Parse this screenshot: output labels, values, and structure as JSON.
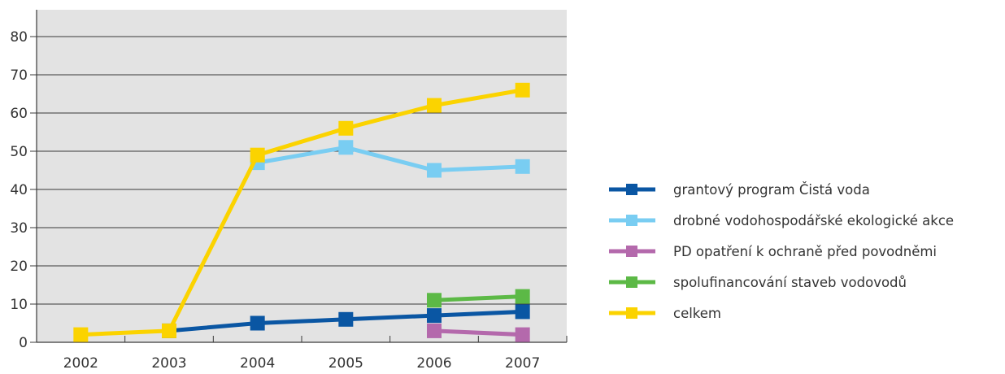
{
  "chart_data": {
    "type": "line",
    "categories": [
      "2002",
      "2003",
      "2004",
      "2005",
      "2006",
      "2007"
    ],
    "ylim": [
      0,
      80
    ],
    "yticks": [
      0,
      10,
      20,
      30,
      40,
      50,
      60,
      70,
      80
    ],
    "grid": true,
    "legend_position": "right",
    "plot_background": "#e3e3e3",
    "series": [
      {
        "name": "grantový program Čistá voda",
        "color": "#0a56a3",
        "values": [
          null,
          3,
          5,
          6,
          7,
          8
        ]
      },
      {
        "name": "drobné vodohospodářské ekologické akce",
        "color": "#79cdf2",
        "values": [
          null,
          null,
          47,
          51,
          45,
          46
        ]
      },
      {
        "name": "PD opatření k ochraně před povodněmi",
        "color": "#b469ac",
        "values": [
          null,
          null,
          null,
          null,
          3,
          2
        ]
      },
      {
        "name": "spolufinancování staveb vodovodů",
        "color": "#5cb946",
        "values": [
          null,
          null,
          null,
          null,
          11,
          12
        ]
      },
      {
        "name": "celkem",
        "color": "#fbd300",
        "values": [
          2,
          3,
          49,
          56,
          62,
          66
        ]
      }
    ]
  }
}
